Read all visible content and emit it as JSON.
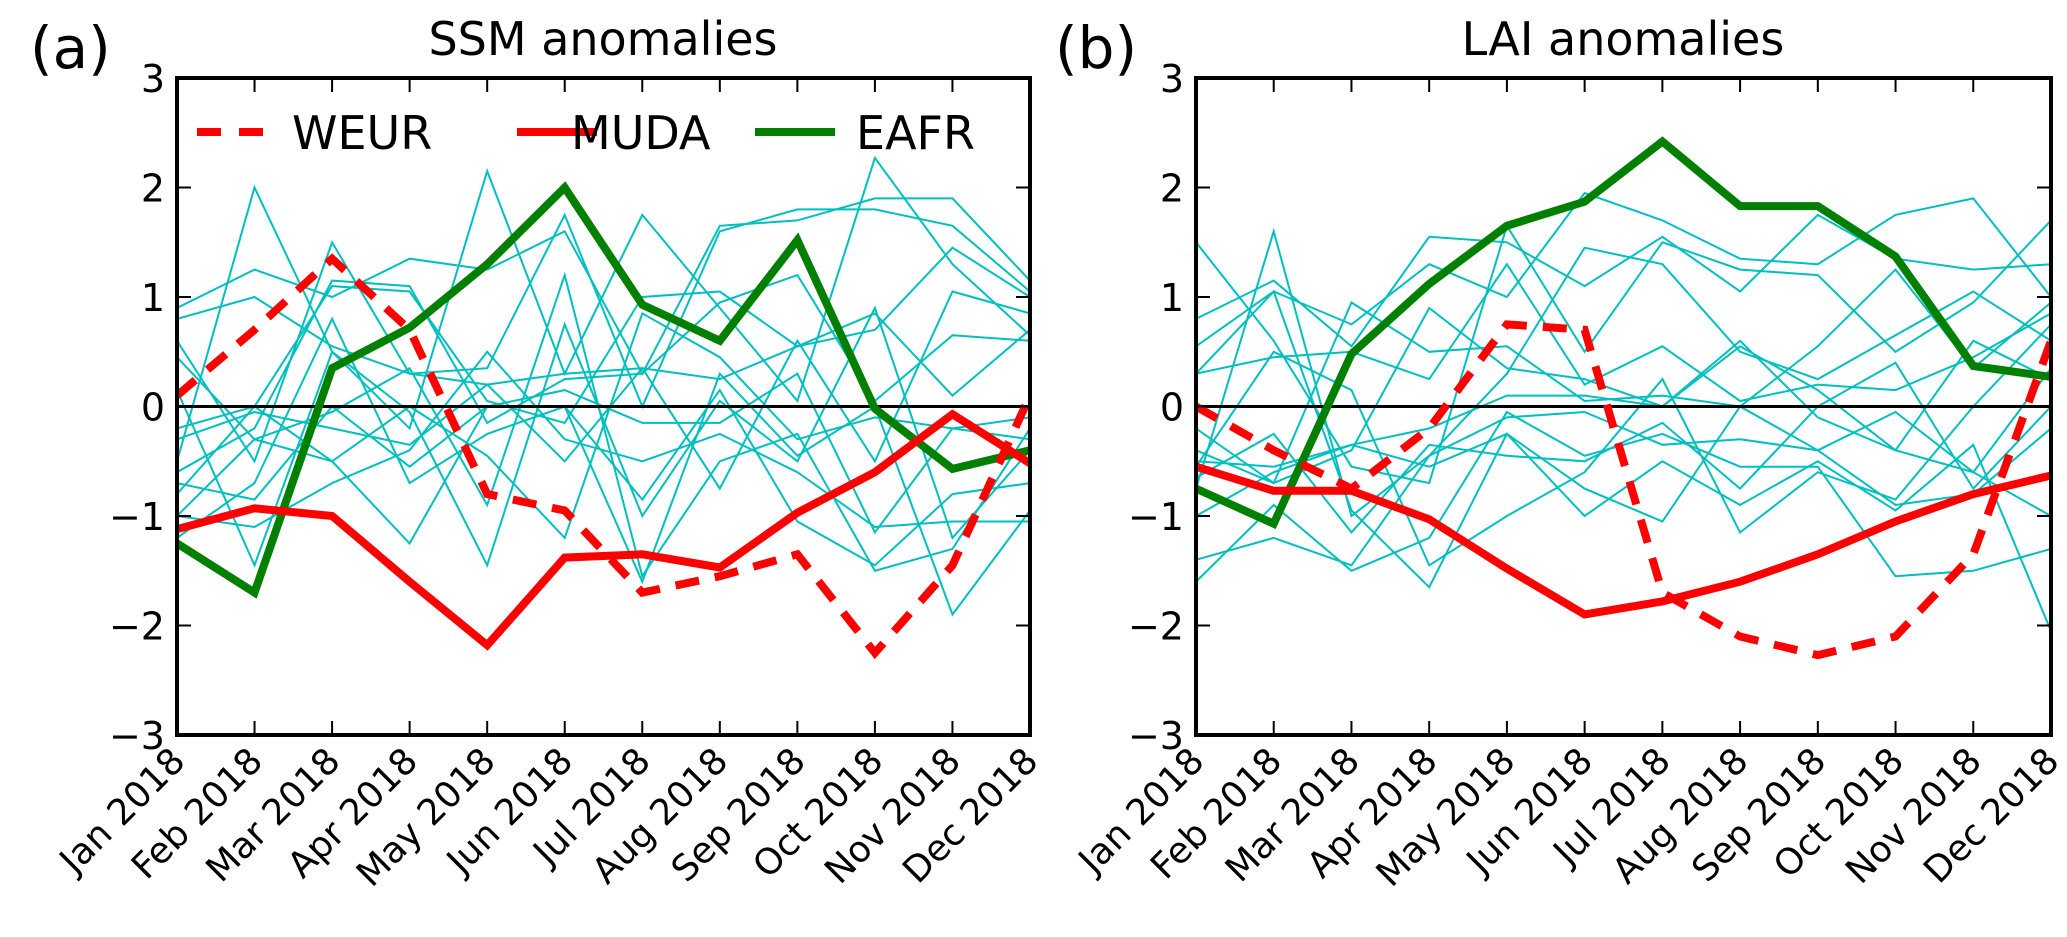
{
  "chart_data": [
    {
      "type": "line",
      "panel_label": "(a)",
      "title": "SSM anomalies",
      "xlabel": "",
      "ylabel": "",
      "ylim": [
        -3,
        3
      ],
      "yticks": [
        "−3",
        "−2",
        "−1",
        "0",
        "1",
        "2",
        "3"
      ],
      "ytick_values": [
        -3,
        -2,
        -1,
        0,
        1,
        2,
        3
      ],
      "categories": [
        "Jan 2018",
        "Feb 2018",
        "Mar 2018",
        "Apr 2018",
        "May 2018",
        "Jun 2018",
        "Jul 2018",
        "Aug 2018",
        "Sep 2018",
        "Oct 2018",
        "Nov 2018",
        "Dec 2018"
      ],
      "zero_line": true,
      "grid": false,
      "legend": {
        "placement": "top",
        "entries": [
          "WEUR",
          "MUDA",
          "EAFR"
        ]
      },
      "series": [
        {
          "name": "WEUR",
          "color": "#ff0000",
          "style": "dashed",
          "values": [
            0.1,
            0.7,
            1.35,
            0.7,
            -0.8,
            -0.95,
            -1.7,
            -1.55,
            -1.35,
            -2.25,
            -1.45,
            0.1
          ]
        },
        {
          "name": "MUDA",
          "color": "#ff0000",
          "style": "solid",
          "values": [
            -1.12,
            -0.93,
            -1.0,
            -1.6,
            -2.18,
            -1.38,
            -1.35,
            -1.47,
            -0.97,
            -0.6,
            -0.07,
            -0.52
          ]
        },
        {
          "name": "EAFR",
          "color": "#007f00",
          "style": "solid",
          "values": [
            -1.25,
            -1.7,
            0.35,
            0.72,
            1.3,
            2.0,
            0.93,
            0.6,
            1.52,
            -0.02,
            -0.57,
            -0.4
          ]
        }
      ],
      "background_series": {
        "color": "#00bfbf",
        "values": [
          [
            0.9,
            1.25,
            1.0,
            1.35,
            1.25,
            1.6,
            0.3,
            1.65,
            1.7,
            1.9,
            1.9,
            1.15
          ],
          [
            0.8,
            1.0,
            0.55,
            0.3,
            0.2,
            0.3,
            0.35,
            0.25,
            0.55,
            0.7,
            1.45,
            1.0
          ],
          [
            -0.5,
            2.0,
            0.5,
            -0.2,
            2.15,
            0.3,
            1.75,
            0.9,
            0.05,
            2.27,
            1.3,
            0.65
          ],
          [
            0.6,
            -0.5,
            1.5,
            0.3,
            0.35,
            1.75,
            0.0,
            1.6,
            1.8,
            1.8,
            1.65,
            1.05
          ],
          [
            -0.2,
            0.0,
            1.1,
            1.05,
            0.05,
            -0.15,
            1.0,
            1.05,
            0.55,
            0.85,
            0.1,
            0.7
          ],
          [
            -0.6,
            -0.2,
            1.15,
            1.1,
            -0.15,
            0.25,
            0.3,
            0.95,
            1.2,
            0.05,
            0.65,
            0.6
          ],
          [
            -1.0,
            -0.3,
            -0.5,
            0.0,
            -0.45,
            -1.2,
            0.85,
            0.45,
            -0.3,
            -0.1,
            -0.2,
            -0.3
          ],
          [
            -0.3,
            -0.05,
            -0.2,
            -0.35,
            0.2,
            -0.5,
            0.35,
            -0.75,
            0.6,
            -0.5,
            1.05,
            0.85
          ],
          [
            -0.7,
            -0.85,
            0.0,
            -0.55,
            0.0,
            0.15,
            -0.15,
            -0.15,
            0.3,
            -1.15,
            -0.2,
            -0.1
          ],
          [
            -1.2,
            -0.7,
            0.8,
            -0.7,
            -0.25,
            0.0,
            -1.6,
            0.3,
            -0.45,
            0.0,
            -1.9,
            -0.95
          ],
          [
            0.15,
            -1.45,
            0.5,
            -0.05,
            -1.45,
            0.75,
            -1.0,
            0.05,
            -0.5,
            0.9,
            -1.2,
            -0.4
          ],
          [
            -0.8,
            0.0,
            -0.5,
            -1.25,
            0.0,
            0.0,
            -0.85,
            0.15,
            -1.05,
            -1.45,
            -0.8,
            -0.7
          ],
          [
            -1.0,
            -1.1,
            -0.7,
            -0.4,
            0.5,
            -0.3,
            -0.5,
            -0.25,
            -0.6,
            -1.1,
            -1.05,
            -1.05
          ],
          [
            0.45,
            -0.3,
            -0.05,
            0.35,
            -0.9,
            1.2,
            -1.55,
            -0.5,
            -0.25,
            -1.5,
            -1.3,
            -0.2
          ]
        ]
      }
    },
    {
      "type": "line",
      "panel_label": "(b)",
      "title": "LAI anomalies",
      "xlabel": "",
      "ylabel": "",
      "ylim": [
        -3,
        3
      ],
      "yticks": [
        "−3",
        "−2",
        "−1",
        "0",
        "1",
        "2",
        "3"
      ],
      "ytick_values": [
        -3,
        -2,
        -1,
        0,
        1,
        2,
        3
      ],
      "categories": [
        "Jan 2018",
        "Feb 2018",
        "Mar 2018",
        "Apr 2018",
        "May 2018",
        "Jun 2018",
        "Jul 2018",
        "Aug 2018",
        "Sep 2018",
        "Oct 2018",
        "Nov 2018",
        "Dec 2018"
      ],
      "zero_line": true,
      "grid": false,
      "series": [
        {
          "name": "WEUR",
          "color": "#ff0000",
          "style": "dashed",
          "values": [
            0.0,
            -0.4,
            -0.75,
            -0.2,
            0.75,
            0.7,
            -1.7,
            -2.1,
            -2.27,
            -2.1,
            -1.35,
            0.6
          ]
        },
        {
          "name": "MUDA",
          "color": "#ff0000",
          "style": "solid",
          "values": [
            -0.55,
            -0.77,
            -0.77,
            -1.03,
            -1.48,
            -1.9,
            -1.78,
            -1.6,
            -1.35,
            -1.05,
            -0.8,
            -0.63
          ]
        },
        {
          "name": "EAFR",
          "color": "#007f00",
          "style": "solid",
          "values": [
            -0.75,
            -1.07,
            0.48,
            1.12,
            1.65,
            1.87,
            2.42,
            1.83,
            1.83,
            1.37,
            0.37,
            0.27
          ]
        }
      ],
      "background_series": {
        "color": "#00bfbf",
        "values": [
          [
            1.5,
            0.6,
            -0.55,
            -0.7,
            1.65,
            0.5,
            1.5,
            1.25,
            1.2,
            0.5,
            0.95,
            1.7
          ],
          [
            0.8,
            1.15,
            0.55,
            1.55,
            1.5,
            1.1,
            1.55,
            1.05,
            1.75,
            1.35,
            1.25,
            1.3
          ],
          [
            0.55,
            1.05,
            0.75,
            1.3,
            1.0,
            1.95,
            1.7,
            1.35,
            1.3,
            1.75,
            1.9,
            1.0
          ],
          [
            -0.75,
            1.6,
            -1.0,
            -0.45,
            0.3,
            1.45,
            1.3,
            0.5,
            0.25,
            0.65,
            1.05,
            0.6
          ],
          [
            0.3,
            0.45,
            0.5,
            0.25,
            1.3,
            0.2,
            0.55,
            0.05,
            0.2,
            0.15,
            0.45,
            0.85
          ],
          [
            -0.4,
            -0.7,
            0.95,
            0.5,
            0.55,
            0.05,
            0.1,
            0.0,
            0.55,
            1.25,
            0.35,
            0.95
          ],
          [
            -0.2,
            -0.7,
            -0.4,
            0.9,
            0.35,
            0.25,
            0.0,
            0.55,
            0.15,
            -0.4,
            -0.6,
            0.35
          ],
          [
            -0.5,
            -0.55,
            -0.35,
            -0.2,
            0.1,
            0.1,
            0.0,
            0.6,
            -0.1,
            -0.4,
            0.6,
            0.25
          ],
          [
            -0.65,
            -0.25,
            -1.15,
            -0.35,
            -0.45,
            -0.5,
            -0.15,
            -0.75,
            0.0,
            0.4,
            -0.75,
            0.0
          ],
          [
            -1.0,
            -0.6,
            -0.35,
            -0.55,
            -0.25,
            -0.75,
            -1.05,
            0.0,
            -0.4,
            -0.9,
            -0.8,
            -0.2
          ],
          [
            -1.4,
            -1.2,
            -1.45,
            -0.45,
            -0.1,
            -0.05,
            -0.35,
            -0.3,
            -0.4,
            -0.05,
            -0.6,
            -1.0
          ],
          [
            -1.6,
            -0.9,
            -1.5,
            -1.2,
            -0.05,
            -0.45,
            -0.25,
            -0.55,
            -0.55,
            -1.55,
            -1.5,
            -1.3
          ],
          [
            0.3,
            1.05,
            -0.95,
            -1.65,
            -0.25,
            -1.0,
            -0.5,
            -0.9,
            -0.5,
            -0.95,
            -0.35,
            -2.05
          ],
          [
            -0.55,
            0.5,
            0.15,
            -1.45,
            -1.0,
            -0.6,
            0.25,
            -1.15,
            -0.6,
            -0.85,
            0.0,
            0.75
          ]
        ]
      }
    }
  ]
}
